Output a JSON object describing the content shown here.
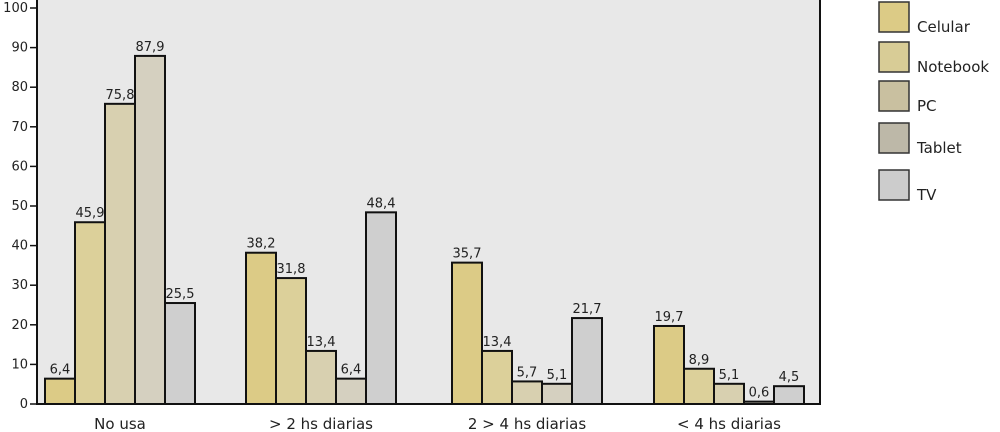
{
  "chart_data": {
    "type": "bar",
    "title": "",
    "xlabel": "",
    "ylabel": "",
    "ylim": [
      0,
      100
    ],
    "yticks": [
      "0",
      "10",
      "20",
      "30",
      "40",
      "50",
      "60",
      "70",
      "80",
      "90",
      "100"
    ],
    "categories": [
      "No usa",
      "> 2 hs diarias",
      "2 > 4 hs diarias",
      "< 4 hs diarias"
    ],
    "series": [
      {
        "name": "Celular",
        "color": "#dccb86",
        "values": [
          6.4,
          38.2,
          35.7,
          19.7
        ],
        "labels": [
          "6,4",
          "38,2",
          "35,7",
          "19,7"
        ]
      },
      {
        "name": "Notebook",
        "color": "#dcd09a",
        "values": [
          45.9,
          31.8,
          13.4,
          8.9
        ],
        "labels": [
          "45,9",
          "31,8",
          "13,4",
          "8,9"
        ]
      },
      {
        "name": "PC",
        "color": "#d8d0b0",
        "values": [
          75.8,
          13.4,
          5.7,
          5.1
        ],
        "labels": [
          "75,8",
          "13,4",
          "5,7",
          "5,1"
        ]
      },
      {
        "name": "Tablet",
        "color": "#d5d0c0",
        "values": [
          87.9,
          6.4,
          5.1,
          0.6
        ],
        "labels": [
          "87,9",
          "6,4",
          "5,1",
          "0,6"
        ]
      },
      {
        "name": "TV",
        "color": "#cfcfcf",
        "values": [
          25.5,
          48.4,
          21.7,
          4.5
        ],
        "labels": [
          "25,5",
          "48,4",
          "21,7",
          "4,5"
        ]
      }
    ],
    "legend_colors": [
      "#dccb86",
      "#d8cc96",
      "#c9c0a0",
      "#bdb8a8",
      "#cccccc"
    ],
    "legend": "right",
    "grid": false,
    "plot_background": "#e8e8e8"
  }
}
